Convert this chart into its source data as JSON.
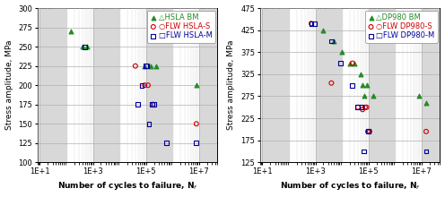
{
  "left": {
    "ylabel": "Stress amplitude, MPa",
    "xlabel": "Number of cycles to failure, N",
    "ylim": [
      100,
      300
    ],
    "yticks": [
      100,
      125,
      150,
      175,
      200,
      225,
      250,
      275,
      300
    ],
    "xtick_labels": [
      "1E+1",
      "1E+3",
      "1E+5",
      "1E+7"
    ],
    "xtick_vals": [
      10,
      1000,
      100000,
      10000000
    ],
    "series": {
      "HSLA BM": {
        "color": "#228B22",
        "marker": "^",
        "x": [
          150,
          400,
          600,
          90000,
          150000,
          250000,
          8000000
        ],
        "y": [
          270,
          250,
          250,
          225,
          225,
          225,
          200
        ]
      },
      "FLW HSLA-S": {
        "color": "#CC0000",
        "marker": "o",
        "x": [
          40000,
          90000,
          120000,
          180000,
          8000000
        ],
        "y": [
          225,
          200,
          200,
          175,
          150
        ]
      },
      "FLW HSLA-M": {
        "color": "#000099",
        "marker": "s",
        "x": [
          500,
          50000,
          70000,
          100000,
          110000,
          130000,
          170000,
          200000,
          600000,
          8000000
        ],
        "y": [
          250,
          175,
          200,
          225,
          225,
          150,
          175,
          175,
          125,
          125
        ]
      }
    }
  },
  "right": {
    "ylabel": "Stress amplitude, MPa",
    "xlabel": "Number of cycles to failure, N",
    "ylim": [
      125,
      475
    ],
    "yticks": [
      125,
      175,
      225,
      275,
      325,
      375,
      425,
      475
    ],
    "xtick_labels": [
      "1E+1",
      "1E+3",
      "1E+5",
      "1E+7"
    ],
    "xtick_vals": [
      10,
      1000,
      100000,
      10000000
    ],
    "series": {
      "DP980 BM": {
        "color": "#228B22",
        "marker": "^",
        "x": [
          2000,
          5000,
          10000,
          20000,
          30000,
          50000,
          60000,
          70000,
          90000,
          150000,
          8000000,
          15000000
        ],
        "y": [
          425,
          400,
          375,
          350,
          350,
          325,
          300,
          275,
          300,
          275,
          275,
          260
        ]
      },
      "FLW DP980-S": {
        "color": "#CC0000",
        "marker": "o",
        "x": [
          700,
          4000,
          25000,
          40000,
          60000,
          75000,
          85000,
          95000,
          110000,
          15000000
        ],
        "y": [
          440,
          305,
          350,
          250,
          245,
          250,
          250,
          195,
          195,
          195
        ]
      },
      "FLW DP980-M": {
        "color": "#000099",
        "marker": "s",
        "x": [
          700,
          900,
          4000,
          9000,
          25000,
          40000,
          55000,
          65000,
          100000,
          15000000
        ],
        "y": [
          440,
          440,
          400,
          350,
          300,
          250,
          250,
          150,
          195,
          150
        ]
      }
    }
  },
  "bg_color": "#ffffff",
  "grid_major_color": "#b0b0b0",
  "grid_minor_color": "#d8d8d8",
  "band_color": "#d8d8d8",
  "legend_fs": 6.0,
  "axis_label_fs": 6.5,
  "tick_label_fs": 6.0
}
